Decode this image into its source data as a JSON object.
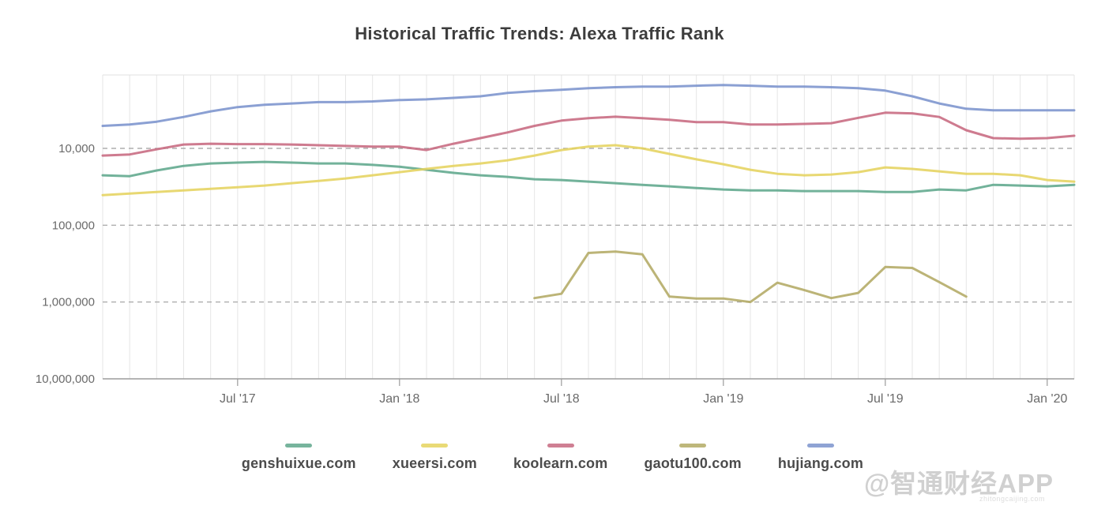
{
  "title": "Historical Traffic Trends: Alexa Traffic Rank",
  "watermark": {
    "text": "@智通财经APP",
    "subtext": "zhitongcaijing.com"
  },
  "chart_data": {
    "type": "line",
    "title": "Historical Traffic Trends: Alexa Traffic Rank",
    "xlabel": "",
    "ylabel": "",
    "y_axis": {
      "scale": "log10-inverted",
      "tick_labels": [
        "10,000",
        "100,000",
        "1,000,000",
        "10,000,000"
      ],
      "tick_values": [
        10000,
        100000,
        1000000,
        10000000
      ],
      "top_rank": 1100,
      "bottom_rank": 10000000,
      "gridline_style": "dashed"
    },
    "x_axis": {
      "months_total": 37,
      "months": [
        "Feb '17",
        "Mar '17",
        "Apr '17",
        "May '17",
        "Jun '17",
        "Jul '17",
        "Aug '17",
        "Sep '17",
        "Oct '17",
        "Nov '17",
        "Dec '17",
        "Jan '18",
        "Feb '18",
        "Mar '18",
        "Apr '18",
        "May '18",
        "Jun '18",
        "Jul '18",
        "Aug '18",
        "Sep '18",
        "Oct '18",
        "Nov '18",
        "Dec '18",
        "Jan '19",
        "Feb '19",
        "Mar '19",
        "Apr '19",
        "May '19",
        "Jun '19",
        "Jul '19",
        "Aug '19",
        "Sep '19",
        "Oct '19",
        "Nov '19",
        "Dec '19",
        "Jan '20",
        "Feb '20"
      ],
      "tick_labels": [
        "Jul '17",
        "Jan '18",
        "Jul '18",
        "Jan '19",
        "Jul '19",
        "Jan '20"
      ],
      "tick_month_index": [
        5,
        11,
        17,
        23,
        29,
        35
      ],
      "gridline_style": "solid-monthly"
    },
    "legend_position": "bottom",
    "series": [
      {
        "name": "genshuixue.com",
        "color": "#5fa78c",
        "values": [
          22400,
          23000,
          19400,
          16900,
          15700,
          15300,
          15000,
          15300,
          15700,
          15700,
          16400,
          17300,
          19000,
          20800,
          22400,
          23500,
          25200,
          25800,
          27100,
          28400,
          29800,
          31200,
          32800,
          34300,
          35200,
          35200,
          36000,
          36000,
          36000,
          36900,
          36900,
          34300,
          35200,
          29800,
          30500,
          31200,
          29800
        ]
      },
      {
        "name": "xueersi.com",
        "color": "#e5d35e",
        "values": [
          40600,
          38700,
          36900,
          35200,
          33600,
          32000,
          30500,
          28400,
          26500,
          24600,
          22400,
          20400,
          18500,
          16900,
          15700,
          14300,
          12400,
          10500,
          9500,
          9100,
          10000,
          11800,
          13900,
          16100,
          19000,
          21400,
          22400,
          21900,
          20400,
          17700,
          18500,
          19900,
          21400,
          21400,
          22400,
          25800,
          27100
        ]
      },
      {
        "name": "koolearn.com",
        "color": "#c76980",
        "values": [
          12400,
          12000,
          10300,
          8900,
          8700,
          8800,
          8800,
          8900,
          9100,
          9300,
          9500,
          9500,
          10500,
          8700,
          7350,
          6200,
          5100,
          4350,
          4050,
          3870,
          4050,
          4250,
          4550,
          4550,
          4900,
          4900,
          4800,
          4700,
          4000,
          3430,
          3500,
          3900,
          5800,
          7350,
          7500,
          7350,
          6850
        ]
      },
      {
        "name": "gaotu100.com",
        "color": "#b3aa64",
        "values": [
          null,
          null,
          null,
          null,
          null,
          null,
          null,
          null,
          null,
          null,
          null,
          null,
          null,
          null,
          null,
          null,
          890000,
          780000,
          230000,
          220000,
          240000,
          850000,
          900000,
          900000,
          1000000,
          560000,
          700000,
          890000,
          760000,
          350000,
          360000,
          550000,
          850000,
          null,
          null,
          null,
          null
        ]
      },
      {
        "name": "hujiang.com",
        "color": "#7b93cd",
        "values": [
          5100,
          4900,
          4500,
          3900,
          3300,
          2900,
          2700,
          2600,
          2500,
          2500,
          2450,
          2350,
          2300,
          2200,
          2100,
          1900,
          1800,
          1730,
          1650,
          1600,
          1570,
          1570,
          1530,
          1500,
          1530,
          1570,
          1570,
          1600,
          1650,
          1770,
          2100,
          2600,
          3050,
          3200,
          3200,
          3200,
          3200
        ]
      }
    ],
    "plot_colors": {
      "grid_vertical": "#e6e6e6",
      "grid_dashed": "#9e9e9e",
      "axis_line": "#9b9b9b",
      "border": "#e0e0e0",
      "tick_text": "#6a6a6a"
    }
  }
}
